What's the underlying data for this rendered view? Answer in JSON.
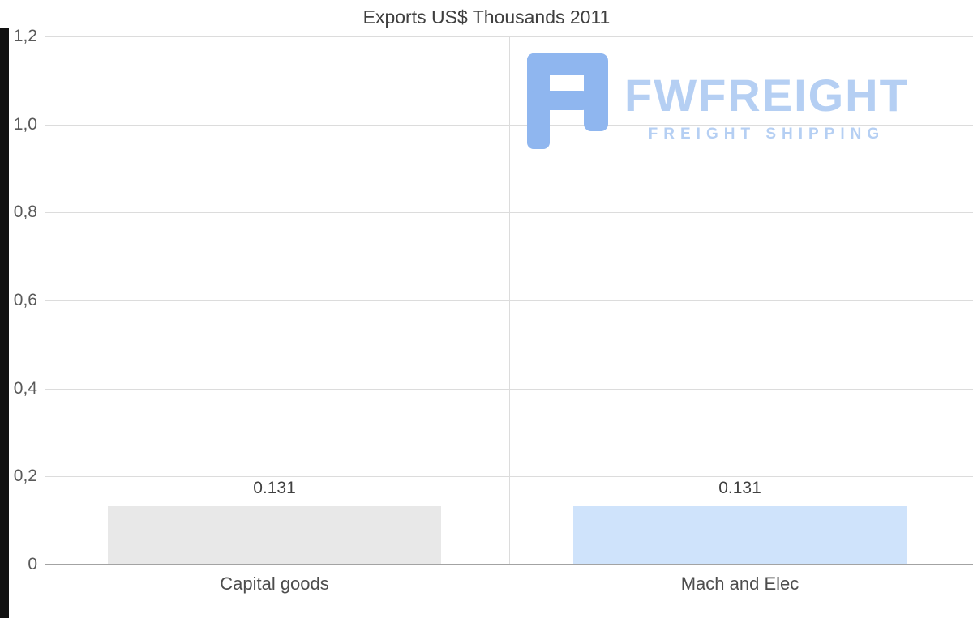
{
  "chart": {
    "title": "Exports US$ Thousands 2011"
  },
  "chart_data": {
    "type": "bar",
    "title": "Exports US$ Thousands 2011",
    "categories": [
      "Capital goods",
      "Mach and Elec"
    ],
    "values": [
      0.131,
      0.131
    ],
    "value_labels": [
      "0.131",
      "0.131"
    ],
    "y_tick_labels": [
      "1,2",
      "1,0",
      "0,8",
      "0,6",
      "0,4",
      "0,2",
      "0"
    ],
    "ylim": [
      0,
      1.2
    ],
    "grid": "horizontal",
    "legend": "none",
    "bar_colors": [
      "#e8e8e8",
      "#cfe3fb"
    ],
    "xlabel": "",
    "ylabel": ""
  },
  "watermark": {
    "name": "FWFREIGHT",
    "subtitle": "FREIGHT SHIPPING",
    "accent_color": "#b5cff3",
    "icon_color": "#8fb6ef",
    "icon": "fwfreight-logo-icon"
  }
}
